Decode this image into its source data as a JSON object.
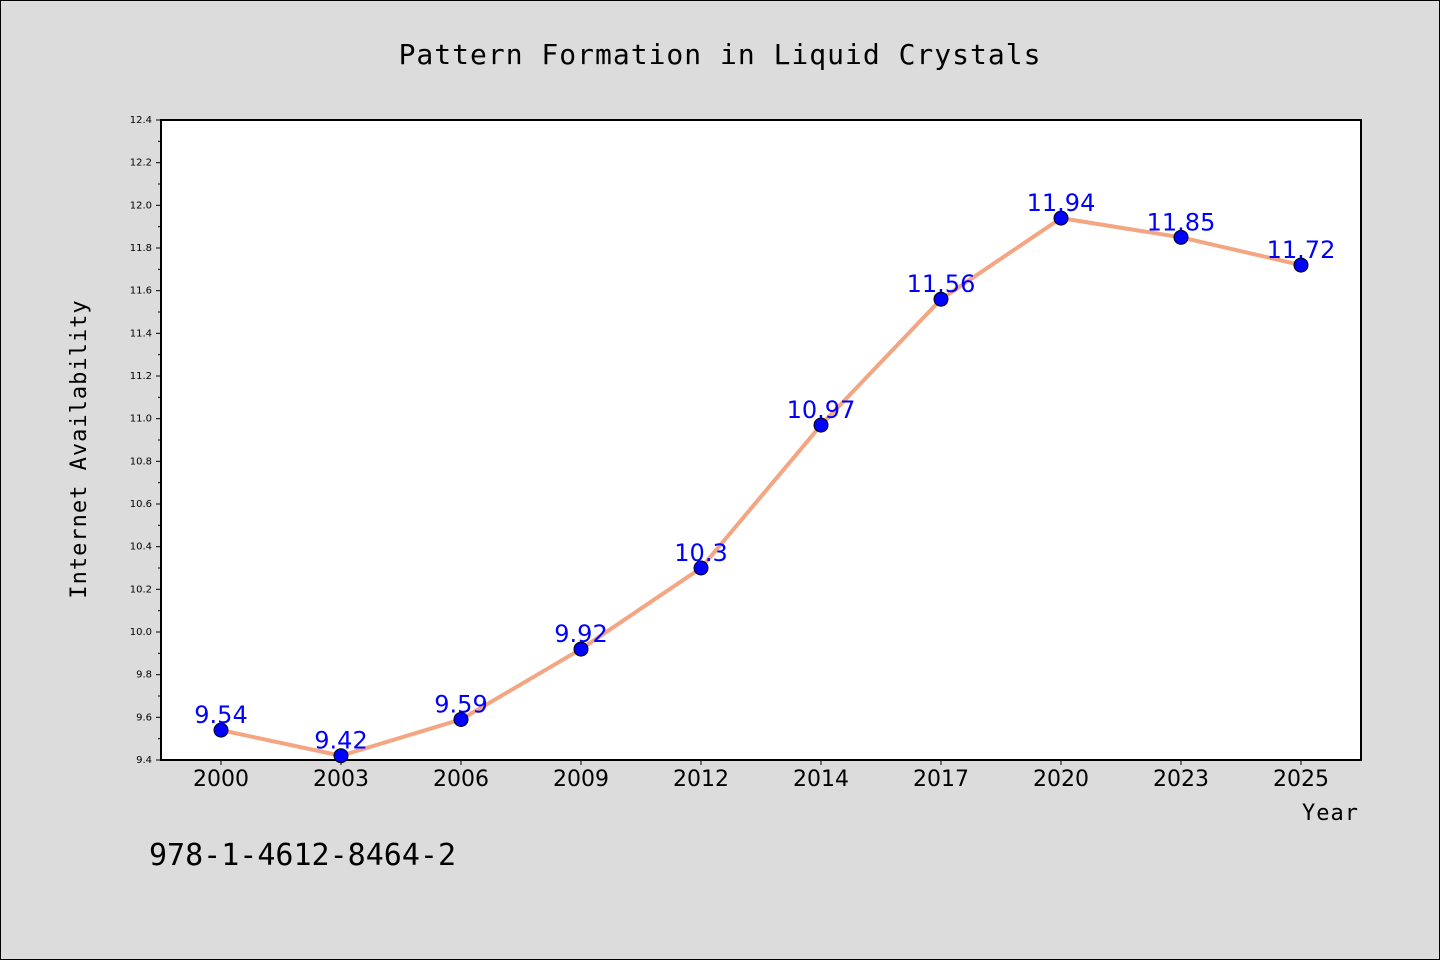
{
  "chart_data": {
    "type": "line",
    "title": "Pattern Formation in Liquid Crystals",
    "xlabel": "Year",
    "ylabel": "Internet Availability",
    "categories": [
      "2000",
      "2003",
      "2006",
      "2009",
      "2012",
      "2014",
      "2017",
      "2020",
      "2023",
      "2025"
    ],
    "series": [
      {
        "values": [
          9.54,
          9.42,
          9.59,
          9.92,
          10.3,
          10.97,
          11.56,
          11.94,
          11.85,
          11.72
        ],
        "labels": [
          "9.54",
          "9.42",
          "9.59",
          "9.92",
          "10.3",
          "10.97",
          "11.56",
          "11.94",
          "11.85",
          "11.72"
        ],
        "line_color": "#f4a582",
        "marker_color": "#0000ff",
        "label_color": "#0000ff"
      }
    ],
    "ylim": [
      9.4,
      12.4
    ],
    "yticks": [
      "9.4",
      "9.6",
      "9.8",
      "10.0",
      "10.2",
      "10.4",
      "10.6",
      "10.8",
      "11.0",
      "11.2",
      "11.4",
      "11.6",
      "11.8",
      "12.0",
      "12.2",
      "12.4"
    ],
    "grid": false,
    "legend": "none"
  },
  "annotation": "978-1-4612-8464-2",
  "colors": {
    "background": "#dcdcdc",
    "plot_background": "#ffffff"
  }
}
